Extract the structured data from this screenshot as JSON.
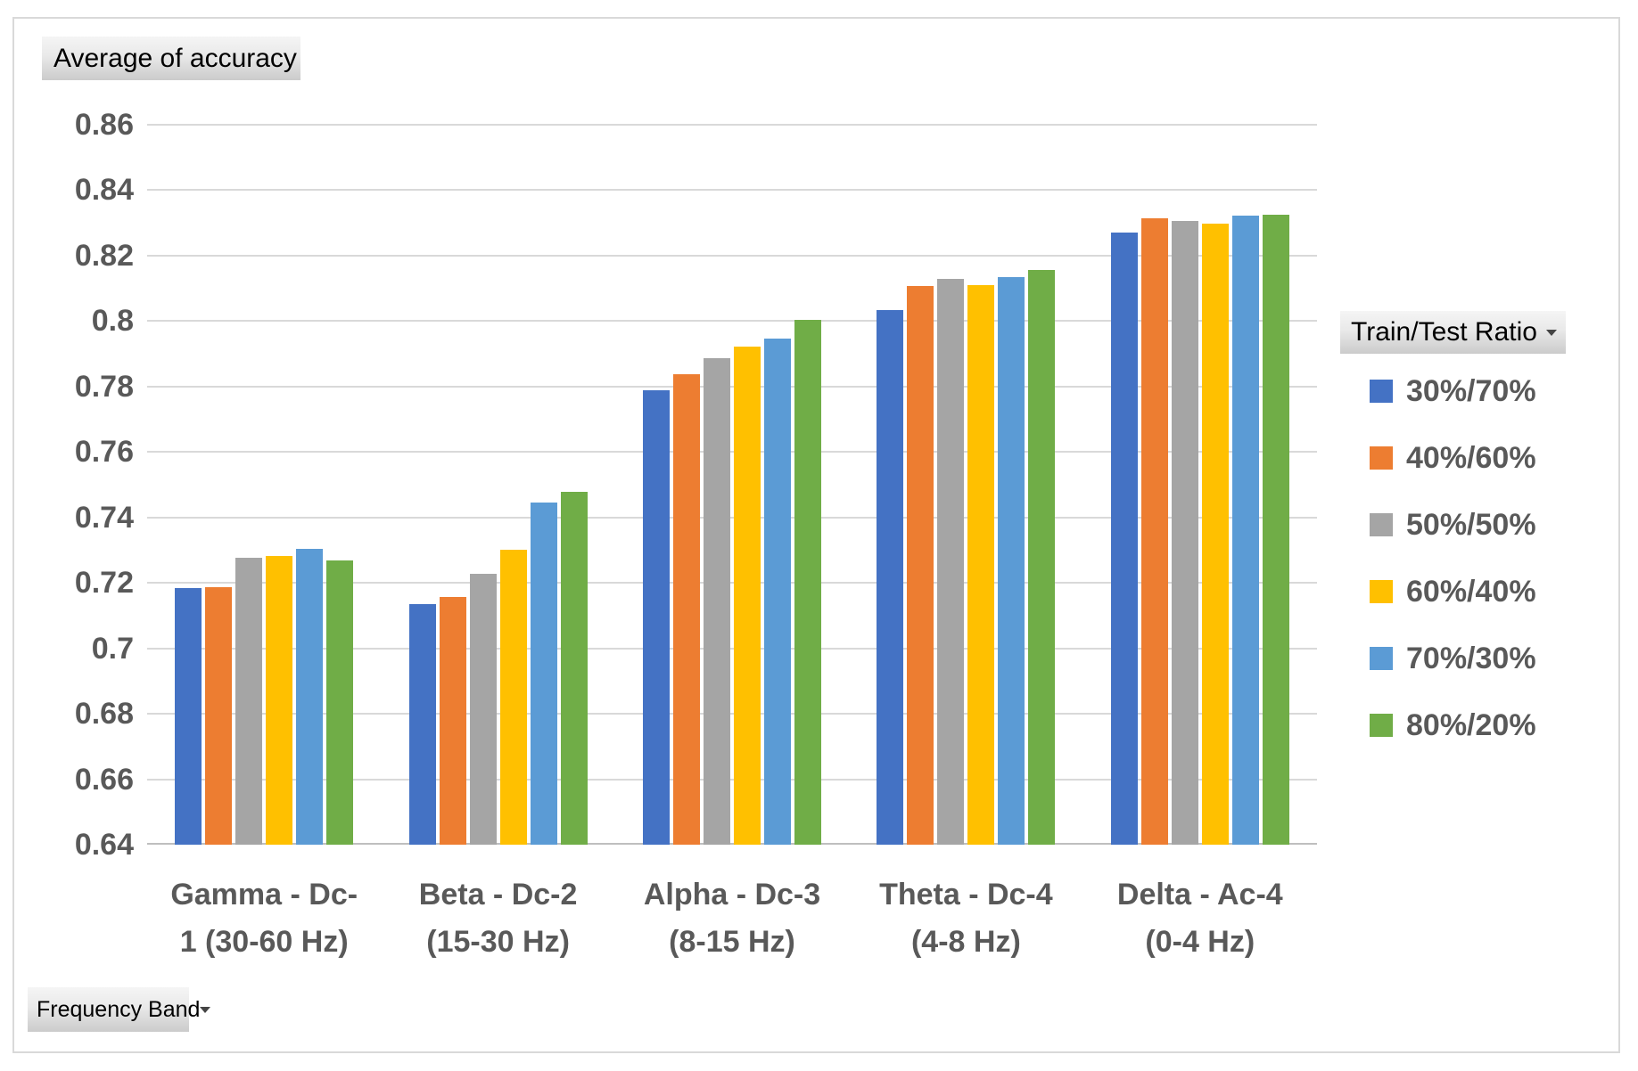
{
  "field_buttons": {
    "value_field_label": "Average of accuracy",
    "legend_field_label": "Train/Test Ratio",
    "axis_field_label": "Frequency Band"
  },
  "colors": {
    "axis_text": "#595959",
    "gridline": "#D9D9D9",
    "axis_line": "#BFBFBF",
    "button_text": "#000000",
    "background": "#FFFFFF"
  },
  "chart_data": {
    "type": "bar",
    "title": "Average of accuracy",
    "xlabel": "Frequency Band",
    "ylabel": "Average of accuracy",
    "legend_title": "Train/Test Ratio",
    "legend_position": "right",
    "grid": true,
    "ylim": [
      0.64,
      0.86
    ],
    "ytick_step": 0.02,
    "yticks_labels": [
      "0.86",
      "0.84",
      "0.82",
      "0.8",
      "0.78",
      "0.76",
      "0.74",
      "0.72",
      "0.7",
      "0.68",
      "0.66",
      "0.64"
    ],
    "categories": [
      "Gamma - Dc-1 (30-60 Hz)",
      "Beta - Dc-2 (15-30 Hz)",
      "Alpha - Dc-3 (8-15 Hz)",
      "Theta - Dc-4 (4-8 Hz)",
      "Delta - Ac-4 (0-4 Hz)"
    ],
    "category_label_lines": [
      [
        "Gamma - Dc-",
        "1 (30-60 Hz)"
      ],
      [
        "Beta - Dc-2",
        "(15-30 Hz)"
      ],
      [
        "Alpha - Dc-3",
        "(8-15 Hz)"
      ],
      [
        "Theta - Dc-4",
        "(4-8 Hz)"
      ],
      [
        "Delta - Ac-4",
        "(0-4 Hz)"
      ]
    ],
    "series": [
      {
        "name": "30%/70%",
        "color": "#4472C4",
        "values": [
          0.7185,
          0.7135,
          0.779,
          0.8035,
          0.8271
        ]
      },
      {
        "name": "40%/60%",
        "color": "#ED7D31",
        "values": [
          0.7187,
          0.7156,
          0.7838,
          0.8106,
          0.8313
        ]
      },
      {
        "name": "50%/50%",
        "color": "#A5A5A5",
        "values": [
          0.7278,
          0.7228,
          0.7886,
          0.8128,
          0.8306
        ]
      },
      {
        "name": "60%/40%",
        "color": "#FFC000",
        "values": [
          0.7282,
          0.7301,
          0.7922,
          0.811,
          0.8299
        ]
      },
      {
        "name": "70%/30%",
        "color": "#5B9BD5",
        "values": [
          0.7305,
          0.7446,
          0.7946,
          0.8134,
          0.8321
        ]
      },
      {
        "name": "80%/20%",
        "color": "#70AD47",
        "values": [
          0.7268,
          0.7478,
          0.8004,
          0.8156,
          0.8326
        ]
      }
    ]
  }
}
